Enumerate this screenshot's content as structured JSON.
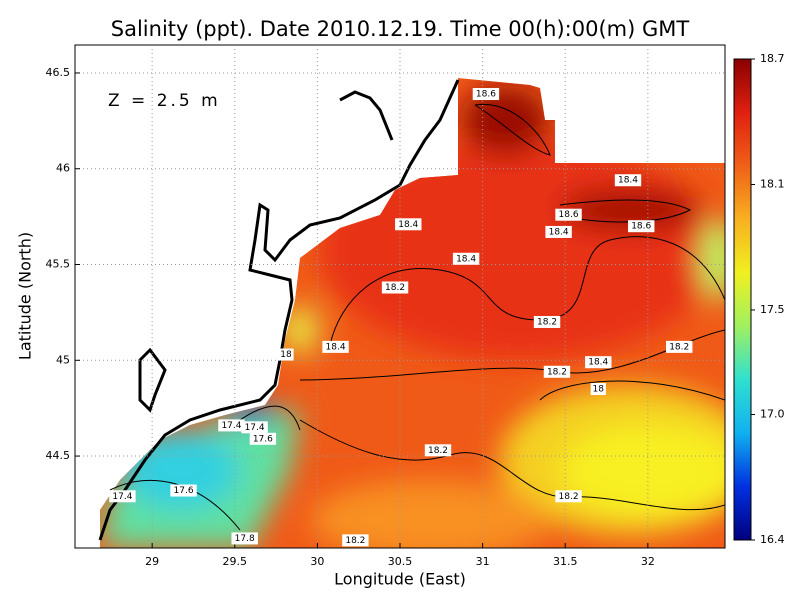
{
  "chart_data": {
    "type": "contour_map",
    "title": "Salinity (ppt). Date 2010.12.19. Time 00(h):00(m) GMT",
    "annotation": "Z = 2.5 m",
    "x_label": "Longitude (East)",
    "y_label": "Latitude (North)",
    "xlim": [
      28.533,
      32.467
    ],
    "ylim": [
      44.02,
      46.646
    ],
    "xticks": [
      29,
      29.5,
      30,
      30.5,
      31,
      31.5,
      32
    ],
    "yticks": [
      44.5,
      45,
      45.5,
      46,
      46.5
    ],
    "grid": true,
    "clim": [
      16.4,
      18.7
    ],
    "colormap": [
      "#00007f",
      "#0030e0",
      "#10b0f0",
      "#30e0d0",
      "#a0f060",
      "#f0f020",
      "#f8b020",
      "#f06018",
      "#e02010",
      "#8a0000"
    ],
    "cticks": [
      16.4,
      {
        "value": 17.0,
        "label": "17.0"
      },
      17.5,
      18.1,
      18.7
    ],
    "contour_labels": [
      {
        "value": 18.6,
        "lon": 31.02,
        "lat": 46.39
      },
      {
        "value": 18.4,
        "lon": 31.88,
        "lat": 45.94
      },
      {
        "value": 18.6,
        "lon": 31.52,
        "lat": 45.76
      },
      {
        "value": 18.6,
        "lon": 31.96,
        "lat": 45.7
      },
      {
        "value": 18.4,
        "lon": 30.55,
        "lat": 45.71
      },
      {
        "value": 18.4,
        "lon": 31.46,
        "lat": 45.67
      },
      {
        "value": 18.4,
        "lon": 30.9,
        "lat": 45.53
      },
      {
        "value": 18.2,
        "lon": 30.47,
        "lat": 45.38
      },
      {
        "value": 18.2,
        "lon": 31.39,
        "lat": 45.2
      },
      {
        "value": 18.4,
        "lon": 30.11,
        "lat": 45.07
      },
      {
        "value": 18,
        "lon": 29.81,
        "lat": 45.03
      },
      {
        "value": 18.4,
        "lon": 31.7,
        "lat": 44.99
      },
      {
        "value": 18.2,
        "lon": 32.19,
        "lat": 45.07
      },
      {
        "value": 18.2,
        "lon": 31.45,
        "lat": 44.94
      },
      {
        "value": 18,
        "lon": 31.7,
        "lat": 44.85
      },
      {
        "value": 17.4,
        "lon": 29.48,
        "lat": 44.66
      },
      {
        "value": 17.4,
        "lon": 29.62,
        "lat": 44.65
      },
      {
        "value": 17.6,
        "lon": 29.67,
        "lat": 44.59
      },
      {
        "value": 18.2,
        "lon": 30.73,
        "lat": 44.53
      },
      {
        "value": 17.4,
        "lon": 28.82,
        "lat": 44.29
      },
      {
        "value": 17.6,
        "lon": 29.19,
        "lat": 44.32
      },
      {
        "value": 18.2,
        "lon": 31.52,
        "lat": 44.29
      },
      {
        "value": 17.8,
        "lon": 29.56,
        "lat": 44.07
      },
      {
        "value": 18.2,
        "lon": 30.23,
        "lat": 44.06
      }
    ]
  }
}
